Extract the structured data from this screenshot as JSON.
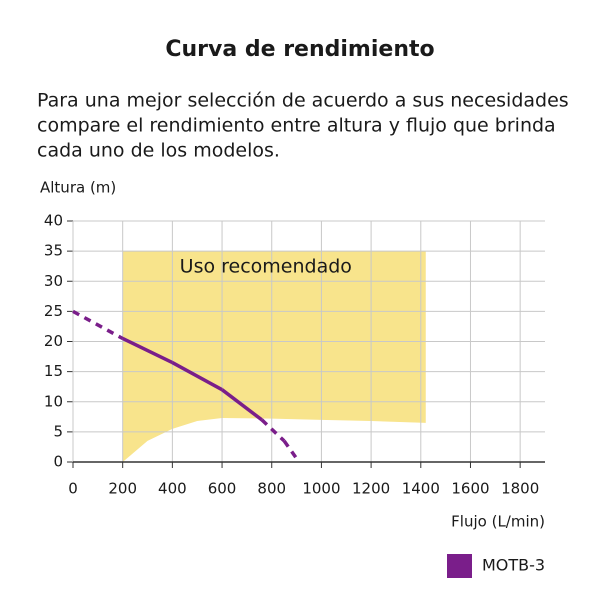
{
  "chart_data": {
    "type": "line",
    "title": "Curva de rendimiento",
    "subtitle": [
      "Para una mejor selección de acuerdo a sus necesidades",
      "compare el rendimiento entre altura y flujo que brinda",
      "cada uno de los modelos."
    ],
    "y_label": "Altura (m)",
    "x_label": "Flujo (L/min)",
    "xlim": [
      0,
      1900
    ],
    "ylim": [
      0,
      40
    ],
    "xticks": [
      0,
      200,
      400,
      600,
      800,
      1000,
      1200,
      1400,
      1600,
      1800
    ],
    "yticks": [
      0,
      5,
      10,
      15,
      20,
      25,
      30,
      35,
      40
    ],
    "grid": true,
    "legend": "bottom-right",
    "zone": {
      "label": "Uso recomendado",
      "color": "#f8e48c",
      "x": [
        200,
        300,
        400,
        500,
        600,
        800,
        1000,
        1200,
        1420
      ],
      "lower": [
        0,
        3.5,
        5.5,
        6.8,
        7.3,
        7.2,
        7,
        6.8,
        6.5
      ],
      "upper": [
        35,
        35,
        35,
        35,
        35,
        35,
        35,
        35,
        35
      ]
    },
    "series": [
      {
        "name": "MOTB-3",
        "color": "#7a1e8a",
        "x": [
          0,
          200,
          400,
          600,
          760,
          850,
          910
        ],
        "values": [
          25,
          20.5,
          16.5,
          12,
          7,
          3.5,
          0
        ]
      }
    ]
  }
}
